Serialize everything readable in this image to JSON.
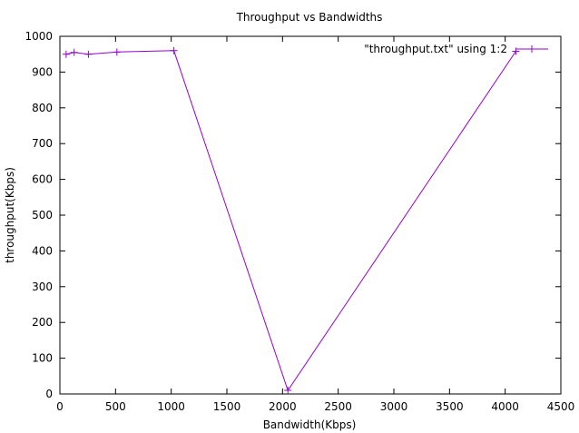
{
  "chart_data": {
    "type": "line",
    "title": "Throughput vs Bandwidths",
    "xlabel": "Bandwidth(Kbps)",
    "ylabel": "throughput(Kbps)",
    "xlim": [
      0,
      4500
    ],
    "ylim": [
      0,
      1000
    ],
    "xticks": [
      0,
      500,
      1000,
      1500,
      2000,
      2500,
      3000,
      3500,
      4000,
      4500
    ],
    "yticks": [
      0,
      100,
      200,
      300,
      400,
      500,
      600,
      700,
      800,
      900,
      1000
    ],
    "grid": false,
    "legend_position": "top-right",
    "series": [
      {
        "name": "\"throughput.txt\" using 1:2",
        "color": "#9400d3",
        "marker": "plus",
        "x": [
          56,
          128,
          256,
          512,
          1024,
          2048,
          4096
        ],
        "y": [
          950,
          955,
          950,
          956,
          960,
          10,
          958
        ]
      }
    ]
  }
}
